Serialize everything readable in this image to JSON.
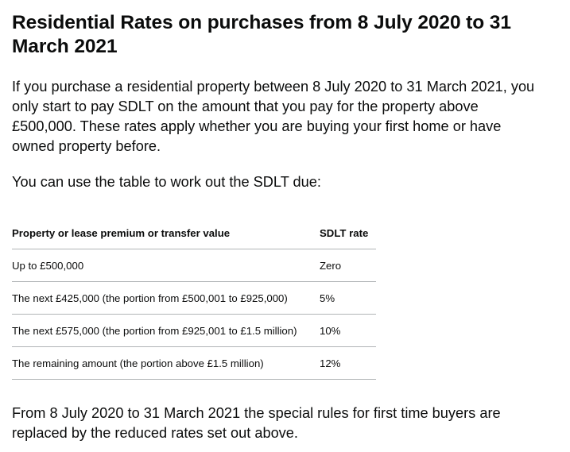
{
  "heading": "Residential Rates on purchases from 8 July 2020 to 31 March 2021",
  "intro": "If you purchase a residential property between 8 July 2020 to 31 March 2021, you only start to pay SDLT on the amount that you pay for the property above £500,000. These rates apply whether you are buying your first home or have owned property before.",
  "table_intro": "You can use the table to work out the SDLT due:",
  "table": {
    "headers": [
      "Property or lease premium or transfer value",
      "SDLT rate"
    ],
    "rows": [
      {
        "value": "Up to £500,000",
        "rate": "Zero"
      },
      {
        "value": "The next £425,000 (the portion from £500,001 to £925,000)",
        "rate": "5%"
      },
      {
        "value": "The next £575,000 (the portion from £925,001 to £1.5 million)",
        "rate": "10%"
      },
      {
        "value": "The remaining amount (the portion above £1.5 million)",
        "rate": "12%"
      }
    ]
  },
  "footer_text": "From 8 July 2020 to 31 March 2021 the special rules for first time buyers are replaced by the reduced rates set out above."
}
